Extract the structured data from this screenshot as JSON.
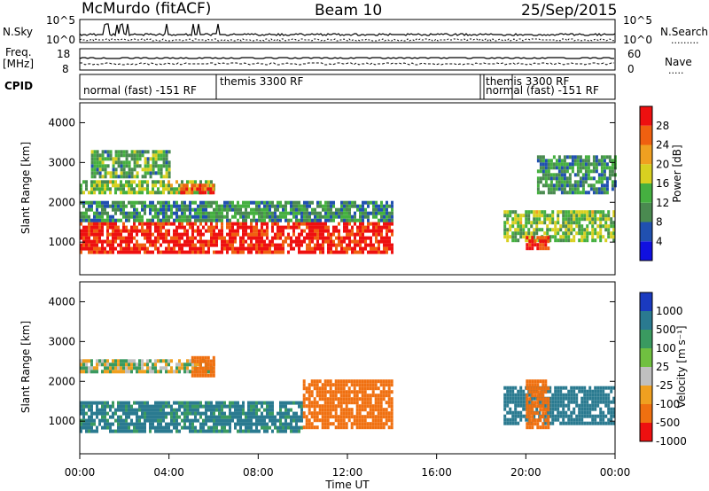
{
  "header": {
    "title": "McMurdo (fitACF)",
    "beam": "Beam 10",
    "date": "25/Sep/2015"
  },
  "noise_panel": {
    "left_label": "N.Sky",
    "right_label": "N.Search",
    "left_ticks": [
      "10^5",
      "10^0"
    ],
    "right_ticks": [
      "10^5",
      "10^0"
    ]
  },
  "freq_panel": {
    "left_label_line1": "Freq.",
    "left_label_line2": "[MHz]",
    "right_label": "Nave",
    "left_ticks": [
      "18",
      "8"
    ],
    "right_ticks": [
      "60",
      "0"
    ]
  },
  "cpid_panel": {
    "label": "CPID",
    "modes": [
      "normal (fast) -151 RF",
      "themis 3300 RF",
      "themis 3300 RF",
      "normal (fast) -151 RF"
    ]
  },
  "x_axis": {
    "label": "Time UT",
    "ticks": [
      "00:00",
      "04:00",
      "08:00",
      "12:00",
      "16:00",
      "20:00",
      "00:00"
    ]
  },
  "power_panel": {
    "ylabel": "Slant Range [km]",
    "yticks": [
      "1000",
      "2000",
      "3000",
      "4000"
    ],
    "colorbar_label": "Power [dB]",
    "colorbar_ticks": [
      "4",
      "8",
      "12",
      "16",
      "20",
      "24",
      "28"
    ],
    "colors": [
      "#1010e0",
      "#2050b0",
      "#4a8a50",
      "#45b040",
      "#d8d020",
      "#f0a020",
      "#f06010",
      "#ee1010"
    ]
  },
  "velocity_panel": {
    "ylabel": "Slant Range [km]",
    "yticks": [
      "1000",
      "2000",
      "3000",
      "4000"
    ],
    "colorbar_label": "Velocity [m s⁻¹]",
    "colorbar_ticks": [
      "1000",
      "500",
      "100",
      "25",
      "-25",
      "-100",
      "-500",
      "-1000"
    ],
    "colors": [
      "#1a3ac0",
      "#2a7a90",
      "#3a9a60",
      "#70c040",
      "#c0c0c0",
      "#f0a020",
      "#f07010",
      "#ee1010"
    ]
  },
  "chart_data": [
    {
      "type": "heatmap",
      "title": "Power",
      "xlabel": "Time UT",
      "ylabel": "Slant Range [km]",
      "xlim": [
        0,
        24
      ],
      "ylim": [
        180,
        4500
      ],
      "clim": [
        0,
        30
      ],
      "colorbar_label": "Power [dB]",
      "bands": [
        {
          "t0": 0.0,
          "t1": 14.0,
          "r0": 700,
          "r1": 1500,
          "level": 28
        },
        {
          "t0": 0.0,
          "t1": 14.0,
          "r0": 1500,
          "r1": 2000,
          "level": 10
        },
        {
          "t0": 0.0,
          "t1": 6.0,
          "r0": 2200,
          "r1": 2500,
          "level": 14
        },
        {
          "t0": 4.5,
          "t1": 6.0,
          "r0": 2200,
          "r1": 2450,
          "level": 26
        },
        {
          "t0": 0.5,
          "t1": 4.0,
          "r0": 2600,
          "r1": 3300,
          "level": 12
        },
        {
          "t0": 19.0,
          "t1": 24.0,
          "r0": 1000,
          "r1": 1800,
          "level": 14
        },
        {
          "t0": 20.0,
          "t1": 21.0,
          "r0": 800,
          "r1": 1100,
          "level": 28
        },
        {
          "t0": 20.5,
          "t1": 24.0,
          "r0": 2200,
          "r1": 3100,
          "level": 10
        }
      ]
    },
    {
      "type": "heatmap",
      "title": "Velocity",
      "xlabel": "Time UT",
      "ylabel": "Slant Range [km]",
      "xlim": [
        0,
        24
      ],
      "ylim": [
        180,
        4500
      ],
      "clim": [
        -1000,
        1000
      ],
      "colorbar_label": "Velocity [m s⁻¹]",
      "bands": [
        {
          "t0": 0.0,
          "t1": 10.0,
          "r0": 700,
          "r1": 1500,
          "value": 150
        },
        {
          "t0": 10.0,
          "t1": 14.0,
          "r0": 800,
          "r1": 2000,
          "value": -200
        },
        {
          "t0": 0.0,
          "t1": 6.0,
          "r0": 2200,
          "r1": 2500,
          "value": 0
        },
        {
          "t0": 5.0,
          "t1": 6.0,
          "r0": 2100,
          "r1": 2600,
          "value": -200
        },
        {
          "t0": 19.0,
          "t1": 24.0,
          "r0": 900,
          "r1": 1800,
          "value": 200
        },
        {
          "t0": 20.0,
          "t1": 21.0,
          "r0": 800,
          "r1": 2000,
          "value": -300
        }
      ]
    }
  ]
}
